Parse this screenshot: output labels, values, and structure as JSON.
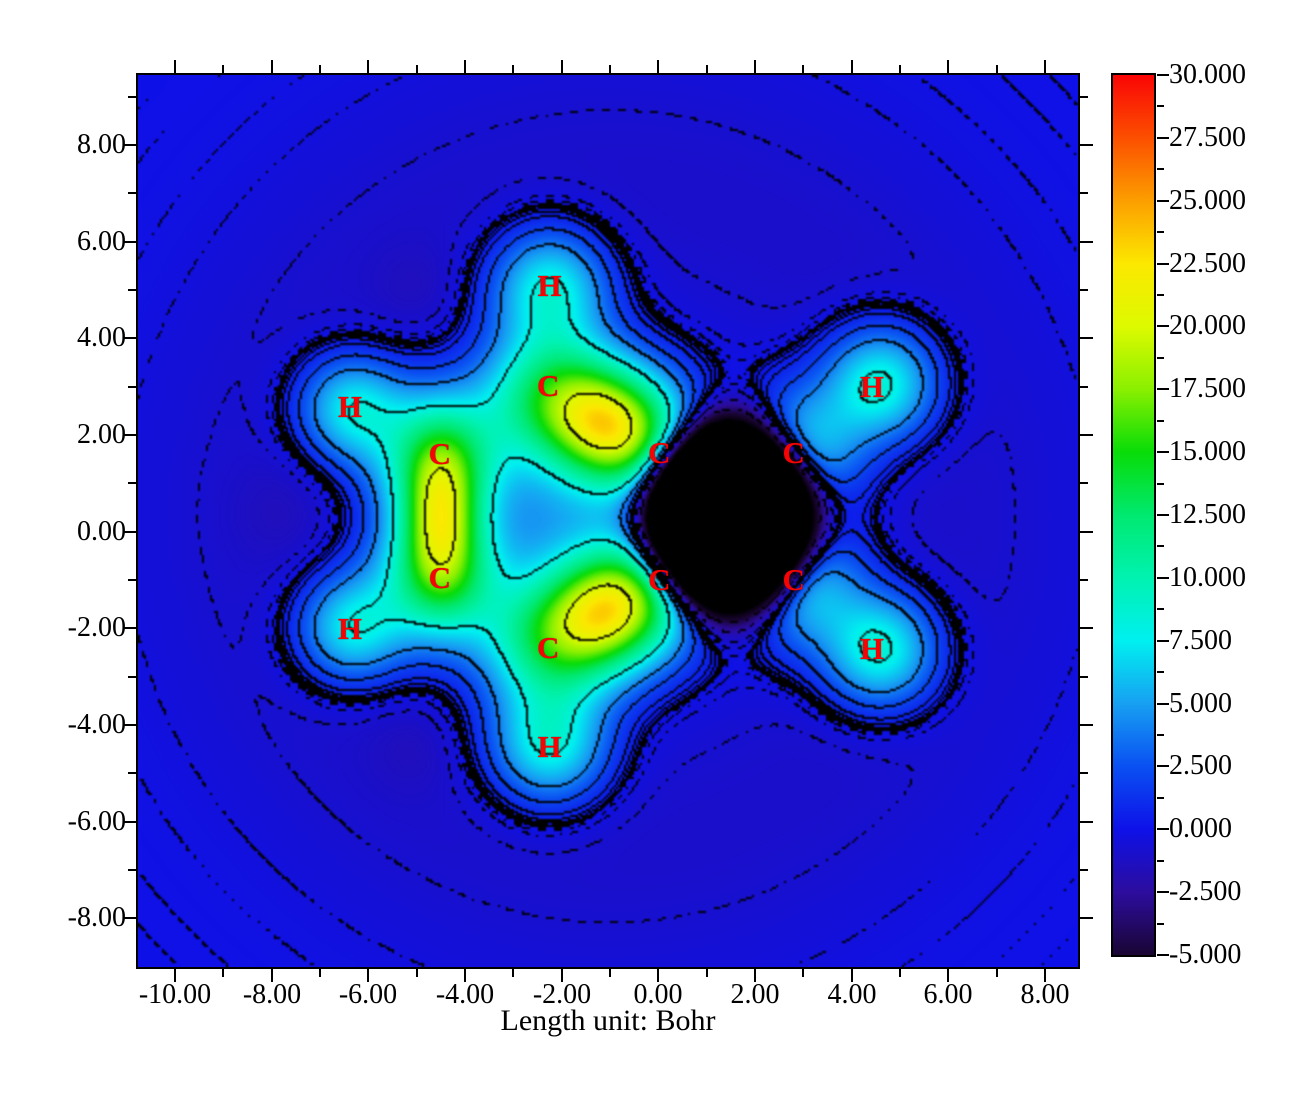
{
  "chart_data": {
    "type": "heatmap",
    "subtype": "filled-contour-map-with-contour-lines",
    "title": "",
    "xlabel": "Length unit: Bohr",
    "ylabel": "",
    "x_axis": {
      "range": [
        -10.766,
        8.683
      ],
      "majors": [
        {
          "v": -10,
          "label": "-10.00"
        },
        {
          "v": -8,
          "label": "-8.00"
        },
        {
          "v": -6,
          "label": "-6.00"
        },
        {
          "v": -4,
          "label": "-4.00"
        },
        {
          "v": -2,
          "label": "-2.00"
        },
        {
          "v": 0,
          "label": "0.00"
        },
        {
          "v": 2,
          "label": "2.00"
        },
        {
          "v": 4,
          "label": "4.00"
        },
        {
          "v": 6,
          "label": "6.00"
        },
        {
          "v": 8,
          "label": "8.00"
        }
      ],
      "minors": [
        -9,
        -7,
        -5,
        -3,
        -1,
        1,
        3,
        5,
        7
      ]
    },
    "y_axis": {
      "range": [
        -9.006,
        9.448
      ],
      "majors": [
        {
          "v": 8,
          "label": "8.00"
        },
        {
          "v": 6,
          "label": "6.00"
        },
        {
          "v": 4,
          "label": "4.00"
        },
        {
          "v": 2,
          "label": "2.00"
        },
        {
          "v": 0,
          "label": "0.00"
        },
        {
          "v": -2,
          "label": "-2.00"
        },
        {
          "v": -4,
          "label": "-4.00"
        },
        {
          "v": -6,
          "label": "-6.00"
        },
        {
          "v": -8,
          "label": "-8.00"
        }
      ],
      "minors": [
        9,
        7,
        5,
        3,
        1,
        -1,
        -3,
        -5,
        -7
      ]
    },
    "colorbar": {
      "min": -5,
      "max": 30,
      "minor_step": 1.25,
      "majors": [
        {
          "v": 30,
          "label": "30.000"
        },
        {
          "v": 27.5,
          "label": "27.500"
        },
        {
          "v": 25,
          "label": "25.000"
        },
        {
          "v": 22.5,
          "label": "22.500"
        },
        {
          "v": 20,
          "label": "20.000"
        },
        {
          "v": 17.5,
          "label": "17.500"
        },
        {
          "v": 15,
          "label": "15.000"
        },
        {
          "v": 12.5,
          "label": "12.500"
        },
        {
          "v": 10,
          "label": "10.000"
        },
        {
          "v": 7.5,
          "label": "7.500"
        },
        {
          "v": 5,
          "label": "5.000"
        },
        {
          "v": 2.5,
          "label": "2.500"
        },
        {
          "v": 0,
          "label": "0.000"
        },
        {
          "v": -2.5,
          "label": "-2.500"
        },
        {
          "v": -5,
          "label": "-5.000"
        }
      ]
    },
    "colormap_stops": [
      {
        "v": -8,
        "c": "#000000"
      },
      {
        "v": -5,
        "c": "#1a0533"
      },
      {
        "v": -2.5,
        "c": "#2c0d9e"
      },
      {
        "v": 0,
        "c": "#0e11e8"
      },
      {
        "v": 2.5,
        "c": "#0a50f2"
      },
      {
        "v": 5,
        "c": "#17a0f2"
      },
      {
        "v": 7.5,
        "c": "#00f0f0"
      },
      {
        "v": 10,
        "c": "#00f2b0"
      },
      {
        "v": 12.5,
        "c": "#00e970"
      },
      {
        "v": 15,
        "c": "#08dc08"
      },
      {
        "v": 17.5,
        "c": "#8af000"
      },
      {
        "v": 20,
        "c": "#ddfa00"
      },
      {
        "v": 22.5,
        "c": "#fce800"
      },
      {
        "v": 25,
        "c": "#fc9e00"
      },
      {
        "v": 27.5,
        "c": "#fc4f00"
      },
      {
        "v": 30,
        "c": "#fa0505"
      }
    ],
    "contour_levels": {
      "solid": [
        0.001,
        0.002,
        0.004,
        0.008,
        0.02,
        0.04,
        0.08,
        0.2,
        0.4,
        0.8,
        2,
        4,
        8,
        20,
        40,
        80
      ],
      "dashed": [
        -0.001,
        -0.002,
        -0.004,
        -0.008,
        -0.02,
        -0.04,
        -0.08,
        -0.2,
        -0.4,
        -0.8,
        -2,
        -4,
        -8,
        -20,
        -40,
        -80
      ]
    },
    "atom_labels": [
      {
        "element": "H",
        "x": -2.25,
        "y": 5.08
      },
      {
        "element": "C",
        "x": -2.28,
        "y": 3.02
      },
      {
        "element": "H",
        "x": -6.38,
        "y": 2.58
      },
      {
        "element": "C",
        "x": -4.52,
        "y": 1.6
      },
      {
        "element": "C",
        "x": -4.52,
        "y": -0.95
      },
      {
        "element": "H",
        "x": -6.38,
        "y": -2.02
      },
      {
        "element": "C",
        "x": -2.28,
        "y": -2.4
      },
      {
        "element": "H",
        "x": -2.25,
        "y": -4.45
      },
      {
        "element": "C",
        "x": 0.02,
        "y": 1.62
      },
      {
        "element": "C",
        "x": 0.02,
        "y": -1.0
      },
      {
        "element": "C",
        "x": 2.8,
        "y": 1.62
      },
      {
        "element": "C",
        "x": 2.8,
        "y": -1.0
      },
      {
        "element": "H",
        "x": 4.42,
        "y": 3.0
      },
      {
        "element": "H",
        "x": 4.42,
        "y": -2.42
      }
    ],
    "atom_label_color": "#f60404",
    "field_model": {
      "gaussians": [
        {
          "x": -2.25,
          "y": 2.85,
          "a": 11.5,
          "s": 0.95
        },
        {
          "x": -4.5,
          "y": 1.55,
          "a": 11.5,
          "s": 0.95
        },
        {
          "x": -4.5,
          "y": -0.95,
          "a": 11.5,
          "s": 0.95
        },
        {
          "x": -2.25,
          "y": -2.3,
          "a": 11.5,
          "s": 0.95
        },
        {
          "x": 0.05,
          "y": 1.6,
          "a": 11.5,
          "s": 0.95
        },
        {
          "x": 0.05,
          "y": -1.0,
          "a": 11.5,
          "s": 0.95
        },
        {
          "x": 2.78,
          "y": 1.6,
          "a": 10.0,
          "s": 0.9
        },
        {
          "x": 2.78,
          "y": -1.0,
          "a": 10.0,
          "s": 0.9
        },
        {
          "x": -1.1,
          "y": 2.23,
          "a": 15.0,
          "s": 0.85
        },
        {
          "x": -4.5,
          "y": 0.3,
          "a": 13.0,
          "sx": 0.55,
          "sy": 1.05
        },
        {
          "x": -1.1,
          "y": -1.65,
          "a": 15.0,
          "s": 0.85
        },
        {
          "x": -2.25,
          "y": 0.3,
          "a": 2.5,
          "s": 0.8
        },
        {
          "x": -2.25,
          "y": 5.05,
          "a": 8.5,
          "s": 0.82
        },
        {
          "x": -6.35,
          "y": 2.55,
          "a": 8.0,
          "s": 0.75
        },
        {
          "x": -6.35,
          "y": -2.0,
          "a": 8.0,
          "s": 0.75
        },
        {
          "x": -2.25,
          "y": -4.42,
          "a": 8.5,
          "s": 0.82
        },
        {
          "x": 4.6,
          "y": 3.05,
          "a": 9.2,
          "s": 0.8
        },
        {
          "x": 4.6,
          "y": -2.45,
          "a": 9.2,
          "s": 0.8
        },
        {
          "x": 1.42,
          "y": 0.3,
          "a": -95.0,
          "sx": 0.9,
          "sy": 1.0
        },
        {
          "x": -5.0,
          "y": 5.05,
          "a": -0.5,
          "s": 0.6
        },
        {
          "x": -7.8,
          "y": 0.4,
          "a": -0.5,
          "s": 0.7
        },
        {
          "x": -5.1,
          "y": -4.5,
          "a": -0.5,
          "s": 0.6
        }
      ],
      "moat": {
        "x": -1.0,
        "y": 0.3,
        "a": -1.0,
        "r0": 6.8,
        "s": 2.4
      }
    }
  }
}
